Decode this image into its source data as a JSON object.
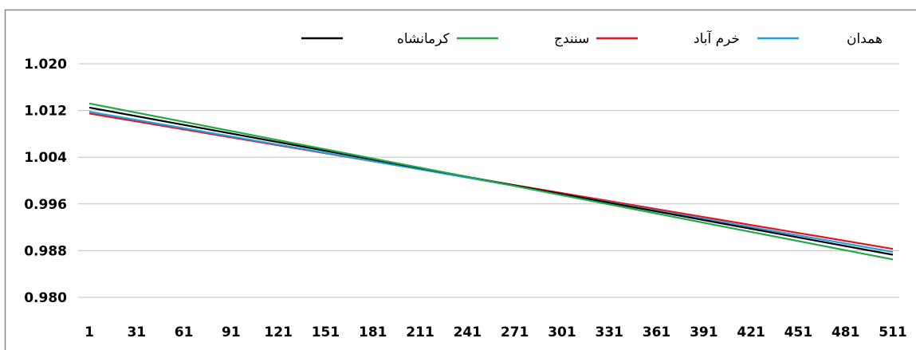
{
  "chart_data": {
    "type": "line",
    "title": "",
    "xlabel": "",
    "ylabel": "",
    "ylim": [
      0.98,
      1.02
    ],
    "y_ticks": [
      "1.020",
      "1.012",
      "1.004",
      "0.996",
      "0.988",
      "0.980"
    ],
    "y_tick_values": [
      1.02,
      1.012,
      1.004,
      0.996,
      0.988,
      0.98
    ],
    "x_ticks": [
      "1",
      "31",
      "61",
      "91",
      "121",
      "151",
      "181",
      "211",
      "241",
      "271",
      "301",
      "331",
      "361",
      "391",
      "421",
      "451",
      "481",
      "511"
    ],
    "x_range": [
      1,
      511
    ],
    "grid": "horizontal",
    "legend_position": "top",
    "series": [
      {
        "name": "کرمانشاه",
        "color": "#000000",
        "x": [
          1,
          511
        ],
        "values": [
          1.0125,
          0.9873
        ]
      },
      {
        "name": "سنندج",
        "color": "#22a845",
        "x": [
          1,
          511
        ],
        "values": [
          1.0132,
          0.9865
        ]
      },
      {
        "name": "خرم آباد",
        "color": "#e3141b",
        "x": [
          1,
          511
        ],
        "values": [
          1.0115,
          0.9883
        ]
      },
      {
        "name": "همدان",
        "color": "#1ea0e6",
        "x": [
          1,
          511
        ],
        "values": [
          1.0118,
          0.9878
        ]
      }
    ]
  }
}
